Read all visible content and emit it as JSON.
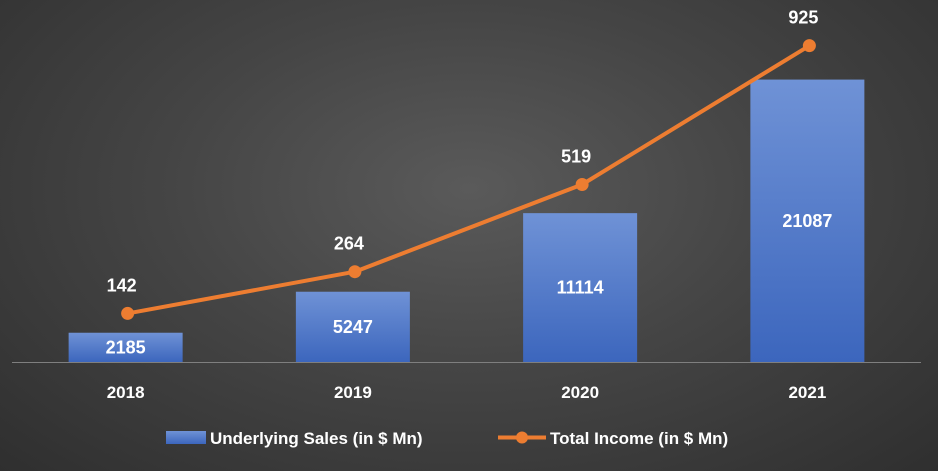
{
  "chart_data": {
    "type": "bar",
    "categories": [
      "2018",
      "2019",
      "2020",
      "2021"
    ],
    "series": [
      {
        "name": "Underlying Sales (in $ Mn)",
        "type": "bar",
        "values": [
          2185,
          5247,
          11114,
          21087
        ],
        "color": "#4472C4"
      },
      {
        "name": "Total Income (in $ Mn)",
        "type": "line",
        "values": [
          142,
          264,
          519,
          925
        ],
        "color": "#ED7D31"
      }
    ],
    "title": "",
    "xlabel": "",
    "ylabel": "",
    "grid": false,
    "legend": "bottom",
    "background": "#3f3f3f",
    "axis_color": "#7f7f7f"
  }
}
